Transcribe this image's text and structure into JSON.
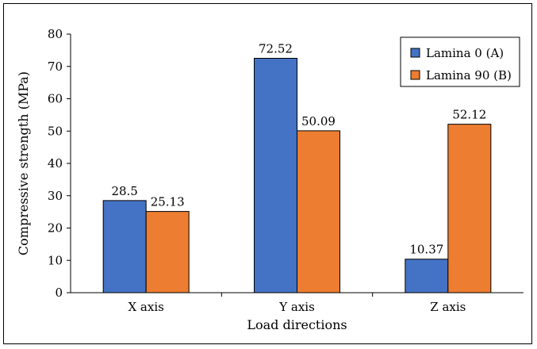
{
  "chart_data": {
    "type": "bar",
    "title": "",
    "xlabel": "Load directions",
    "ylabel": "Compressive strength (MPa)",
    "categories": [
      "X axis",
      "Y axis",
      "Z axis"
    ],
    "series": [
      {
        "name": "Lamina 0 (A)",
        "values": [
          28.5,
          72.52,
          10.37
        ],
        "labels": [
          "28.5",
          "72.52",
          "10.37"
        ],
        "color": "#4472c4"
      },
      {
        "name": "Lamina 90 (B)",
        "values": [
          25.13,
          50.09,
          52.12
        ],
        "labels": [
          "25.13",
          "50.09",
          "52.12"
        ],
        "color": "#ed7d31"
      }
    ],
    "ylim": [
      0,
      80
    ],
    "yticks": [
      0,
      10,
      20,
      30,
      40,
      50,
      60,
      70,
      80
    ],
    "grid": false,
    "legend_position": "top-right"
  }
}
